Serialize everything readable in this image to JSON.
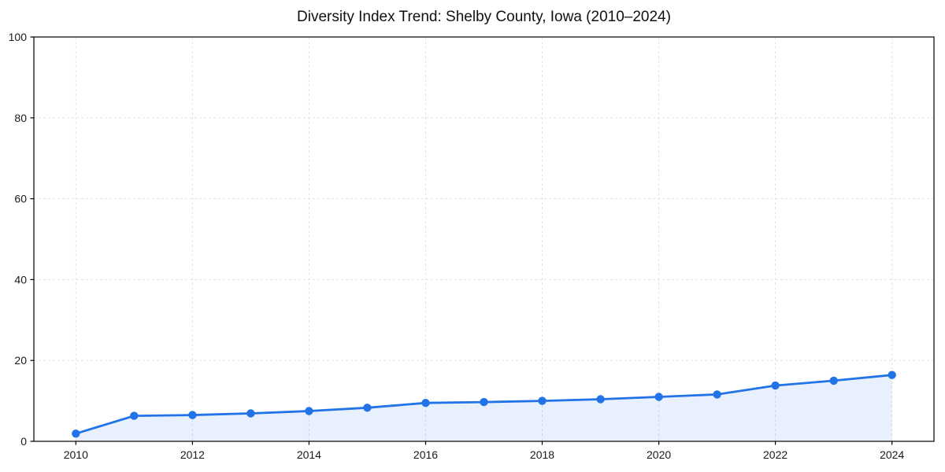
{
  "chart_data": {
    "type": "line",
    "title": "Diversity Index Trend: Shelby County, Iowa (2010–2024)",
    "x": [
      2010,
      2011,
      2012,
      2013,
      2014,
      2015,
      2016,
      2017,
      2018,
      2019,
      2020,
      2021,
      2022,
      2023,
      2024
    ],
    "values": [
      1.9,
      6.3,
      6.5,
      6.9,
      7.5,
      8.3,
      9.5,
      9.7,
      10.0,
      10.4,
      11.0,
      11.6,
      13.8,
      15.0,
      16.4
    ],
    "xlabel": "",
    "ylabel": "",
    "xlim": [
      2009.28,
      2024.72
    ],
    "ylim": [
      0,
      100
    ],
    "xticks": [
      2010,
      2012,
      2014,
      2016,
      2018,
      2020,
      2022,
      2024
    ],
    "yticks": [
      0,
      20,
      40,
      60,
      80,
      100
    ],
    "grid": "dashed",
    "legend": "none",
    "marker": "circle",
    "area_fill": true,
    "area_fill_to": 0,
    "colors": {
      "line": "#2273e8",
      "marker": "#2273e8",
      "area": "rgba(34,115,232,0.11)",
      "grid": "#e2e2e2",
      "spine": "#000000",
      "tick": "#000000",
      "tick_label": "#1a1a1a",
      "title": "#111111",
      "background": "#ffffff"
    }
  }
}
